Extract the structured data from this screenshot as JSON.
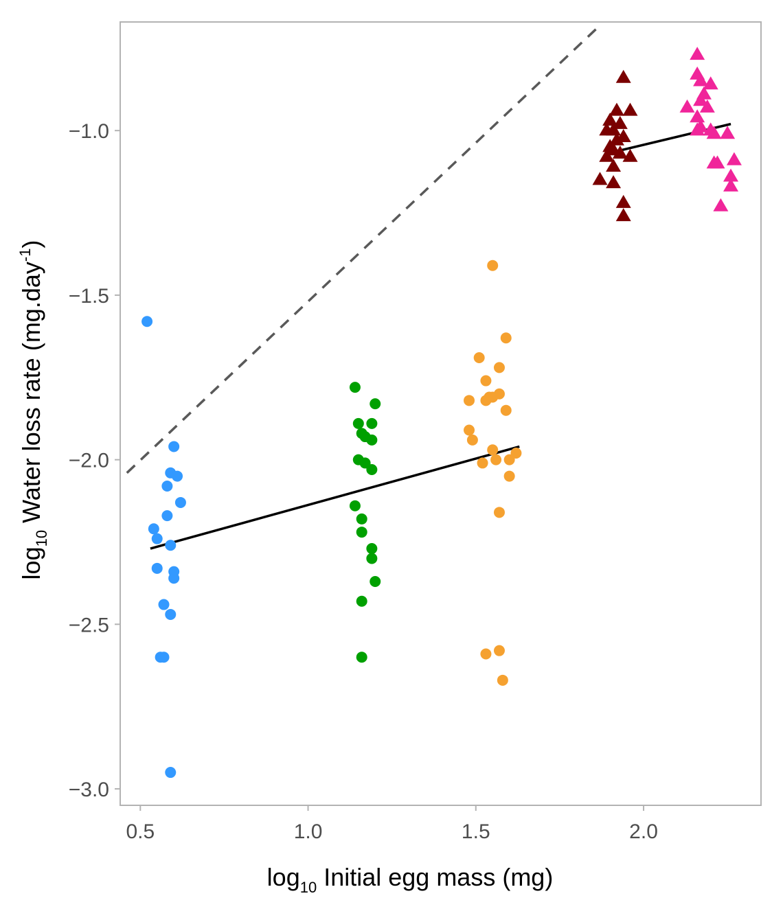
{
  "chart_data": {
    "type": "scatter",
    "title": "",
    "xlabel": {
      "prefix": "log",
      "sub": "10",
      "text": " Initial egg mass (mg)"
    },
    "ylabel": {
      "prefix": "log",
      "sub": "10",
      "text": " Water loss rate (mg.day",
      "sup": "-1",
      "suffix": ")"
    },
    "xlim": [
      0.44,
      2.35
    ],
    "ylim": [
      -3.05,
      -0.67
    ],
    "x_ticks": [
      0.5,
      1.0,
      1.5,
      2.0
    ],
    "x_tick_labels": [
      "0.5",
      "1.0",
      "1.5",
      "2.0"
    ],
    "y_ticks": [
      -3.0,
      -2.5,
      -2.0,
      -1.5,
      -1.0
    ],
    "y_tick_labels": [
      "−3.0",
      "−2.5",
      "−2.0",
      "−1.5",
      "−1.0"
    ],
    "grid": false,
    "colors": {
      "blue": "#3399ff",
      "green": "#00a000",
      "orange": "#f5a130",
      "darkred": "#7a0000",
      "pink": "#f0259a"
    },
    "series": [
      {
        "color": "#3399ff",
        "marker": "circle",
        "points": [
          [
            0.52,
            -1.58
          ],
          [
            0.6,
            -1.96
          ],
          [
            0.59,
            -2.04
          ],
          [
            0.61,
            -2.05
          ],
          [
            0.58,
            -2.08
          ],
          [
            0.62,
            -2.13
          ],
          [
            0.58,
            -2.17
          ],
          [
            0.54,
            -2.21
          ],
          [
            0.55,
            -2.24
          ],
          [
            0.59,
            -2.26
          ],
          [
            0.55,
            -2.33
          ],
          [
            0.6,
            -2.34
          ],
          [
            0.6,
            -2.36
          ],
          [
            0.57,
            -2.44
          ],
          [
            0.59,
            -2.47
          ],
          [
            0.56,
            -2.6
          ],
          [
            0.57,
            -2.6
          ],
          [
            0.59,
            -2.95
          ]
        ]
      },
      {
        "color": "#00a000",
        "marker": "circle",
        "points": [
          [
            1.14,
            -1.78
          ],
          [
            1.2,
            -1.83
          ],
          [
            1.15,
            -1.89
          ],
          [
            1.19,
            -1.89
          ],
          [
            1.16,
            -1.92
          ],
          [
            1.17,
            -1.93
          ],
          [
            1.19,
            -1.94
          ],
          [
            1.15,
            -2.0
          ],
          [
            1.17,
            -2.01
          ],
          [
            1.19,
            -2.03
          ],
          [
            1.14,
            -2.14
          ],
          [
            1.16,
            -2.18
          ],
          [
            1.16,
            -2.22
          ],
          [
            1.19,
            -2.27
          ],
          [
            1.19,
            -2.3
          ],
          [
            1.2,
            -2.37
          ],
          [
            1.16,
            -2.43
          ],
          [
            1.16,
            -2.6
          ]
        ]
      },
      {
        "color": "#f5a130",
        "marker": "circle",
        "points": [
          [
            1.55,
            -1.41
          ],
          [
            1.59,
            -1.63
          ],
          [
            1.51,
            -1.69
          ],
          [
            1.57,
            -1.72
          ],
          [
            1.53,
            -1.76
          ],
          [
            1.57,
            -1.8
          ],
          [
            1.55,
            -1.81
          ],
          [
            1.54,
            -1.81
          ],
          [
            1.48,
            -1.82
          ],
          [
            1.53,
            -1.82
          ],
          [
            1.59,
            -1.85
          ],
          [
            1.48,
            -1.91
          ],
          [
            1.49,
            -1.94
          ],
          [
            1.55,
            -1.97
          ],
          [
            1.62,
            -1.98
          ],
          [
            1.52,
            -2.01
          ],
          [
            1.56,
            -2.0
          ],
          [
            1.6,
            -2.0
          ],
          [
            1.6,
            -2.05
          ],
          [
            1.57,
            -2.16
          ],
          [
            1.53,
            -2.59
          ],
          [
            1.57,
            -2.58
          ],
          [
            1.58,
            -2.67
          ]
        ]
      },
      {
        "color": "#7a0000",
        "marker": "triangle",
        "points": [
          [
            1.94,
            -0.84
          ],
          [
            1.92,
            -0.94
          ],
          [
            1.96,
            -0.94
          ],
          [
            1.9,
            -0.97
          ],
          [
            1.93,
            -0.98
          ],
          [
            1.91,
            -1.0
          ],
          [
            1.89,
            -1.0
          ],
          [
            1.94,
            -1.02
          ],
          [
            1.92,
            -1.03
          ],
          [
            1.9,
            -1.05
          ],
          [
            1.91,
            -1.06
          ],
          [
            1.93,
            -1.07
          ],
          [
            1.89,
            -1.08
          ],
          [
            1.96,
            -1.08
          ],
          [
            1.91,
            -1.11
          ],
          [
            1.87,
            -1.15
          ],
          [
            1.91,
            -1.16
          ],
          [
            1.94,
            -1.22
          ],
          [
            1.94,
            -1.26
          ]
        ]
      },
      {
        "color": "#f0259a",
        "marker": "triangle",
        "points": [
          [
            2.16,
            -0.77
          ],
          [
            2.16,
            -0.83
          ],
          [
            2.17,
            -0.85
          ],
          [
            2.2,
            -0.86
          ],
          [
            2.18,
            -0.89
          ],
          [
            2.17,
            -0.91
          ],
          [
            2.19,
            -0.93
          ],
          [
            2.13,
            -0.93
          ],
          [
            2.16,
            -0.96
          ],
          [
            2.17,
            -0.99
          ],
          [
            2.16,
            -1.0
          ],
          [
            2.2,
            -1.0
          ],
          [
            2.21,
            -1.01
          ],
          [
            2.25,
            -1.01
          ],
          [
            2.21,
            -1.1
          ],
          [
            2.22,
            -1.1
          ],
          [
            2.27,
            -1.09
          ],
          [
            2.26,
            -1.14
          ],
          [
            2.26,
            -1.17
          ],
          [
            2.23,
            -1.23
          ]
        ]
      }
    ],
    "fit_lines": [
      {
        "style": "solid",
        "color": "#000000",
        "x": [
          0.53,
          1.63
        ],
        "y": [
          -2.27,
          -1.96
        ]
      },
      {
        "style": "solid",
        "color": "#000000",
        "x": [
          1.89,
          2.26
        ],
        "y": [
          -1.07,
          -0.98
        ]
      },
      {
        "style": "dashed",
        "color": "#595959",
        "x": [
          0.46,
          1.86
        ],
        "y": [
          -2.04,
          -0.69
        ]
      }
    ]
  }
}
